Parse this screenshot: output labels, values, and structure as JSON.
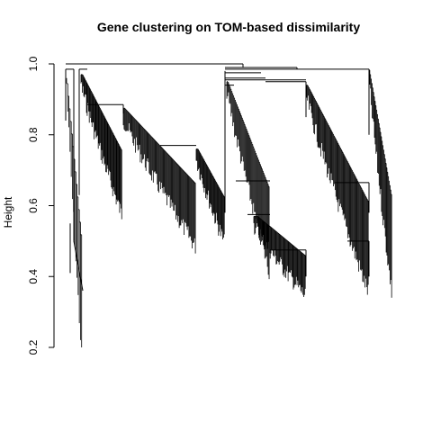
{
  "chart_data": {
    "type": "dendrogram",
    "title": "Gene clustering on TOM-based dissimilarity",
    "xlabel": "",
    "ylabel": "Height",
    "ylim": [
      0.2,
      1.0
    ],
    "yticks": [
      0.2,
      0.4,
      0.6,
      0.8,
      1.0
    ],
    "ytick_labels": [
      "0.2",
      "0.4",
      "0.6",
      "0.8",
      "1.0"
    ],
    "grid": false,
    "clusters": [
      {
        "id": "A",
        "top": 0.985,
        "tip_high": 0.97,
        "tip_low": 0.2,
        "leaves": 14,
        "branch": [
          0.985,
          0.9
        ]
      },
      {
        "id": "B",
        "top": 0.98,
        "tip_high": 0.97,
        "tip_low": 0.6,
        "leaves": 60,
        "branch": [
          0.98,
          0.885
        ]
      },
      {
        "id": "C",
        "top": 0.88,
        "tip_high": 0.87,
        "tip_low": 0.51,
        "leaves": 90,
        "branch": [
          0.88,
          0.77
        ]
      },
      {
        "id": "D",
        "top": 0.77,
        "tip_high": 0.76,
        "tip_low": 0.52,
        "leaves": 40,
        "branch": [
          0.77,
          0.74
        ]
      },
      {
        "id": "E",
        "top": 0.98,
        "tip_high": 0.97,
        "tip_low": 0.37,
        "leaves": 120,
        "branch": [
          0.98,
          0.58
        ]
      },
      {
        "id": "F",
        "top": 0.95,
        "tip_high": 0.94,
        "tip_low": 0.38,
        "leaves": 110,
        "branch": [
          0.95,
          0.5
        ]
      }
    ],
    "merges": [
      {
        "height": 1.0,
        "left": "A+B+C+D",
        "right": "E+F"
      },
      {
        "height": 0.99,
        "left": "E",
        "right": "F"
      },
      {
        "height": 0.985,
        "left": "A",
        "right": "B+C+D"
      },
      {
        "height": 0.885,
        "left": "B",
        "right": "C+D"
      },
      {
        "height": 0.77,
        "left": "C",
        "right": "D"
      },
      {
        "height": 0.665,
        "left": "F1",
        "right": "F2"
      },
      {
        "height": 0.575,
        "left": "E1",
        "right": "E2"
      },
      {
        "height": 0.5,
        "left": "F2a",
        "right": "F2b"
      },
      {
        "height": 0.475,
        "left": "E2a",
        "right": "E2b"
      }
    ]
  }
}
